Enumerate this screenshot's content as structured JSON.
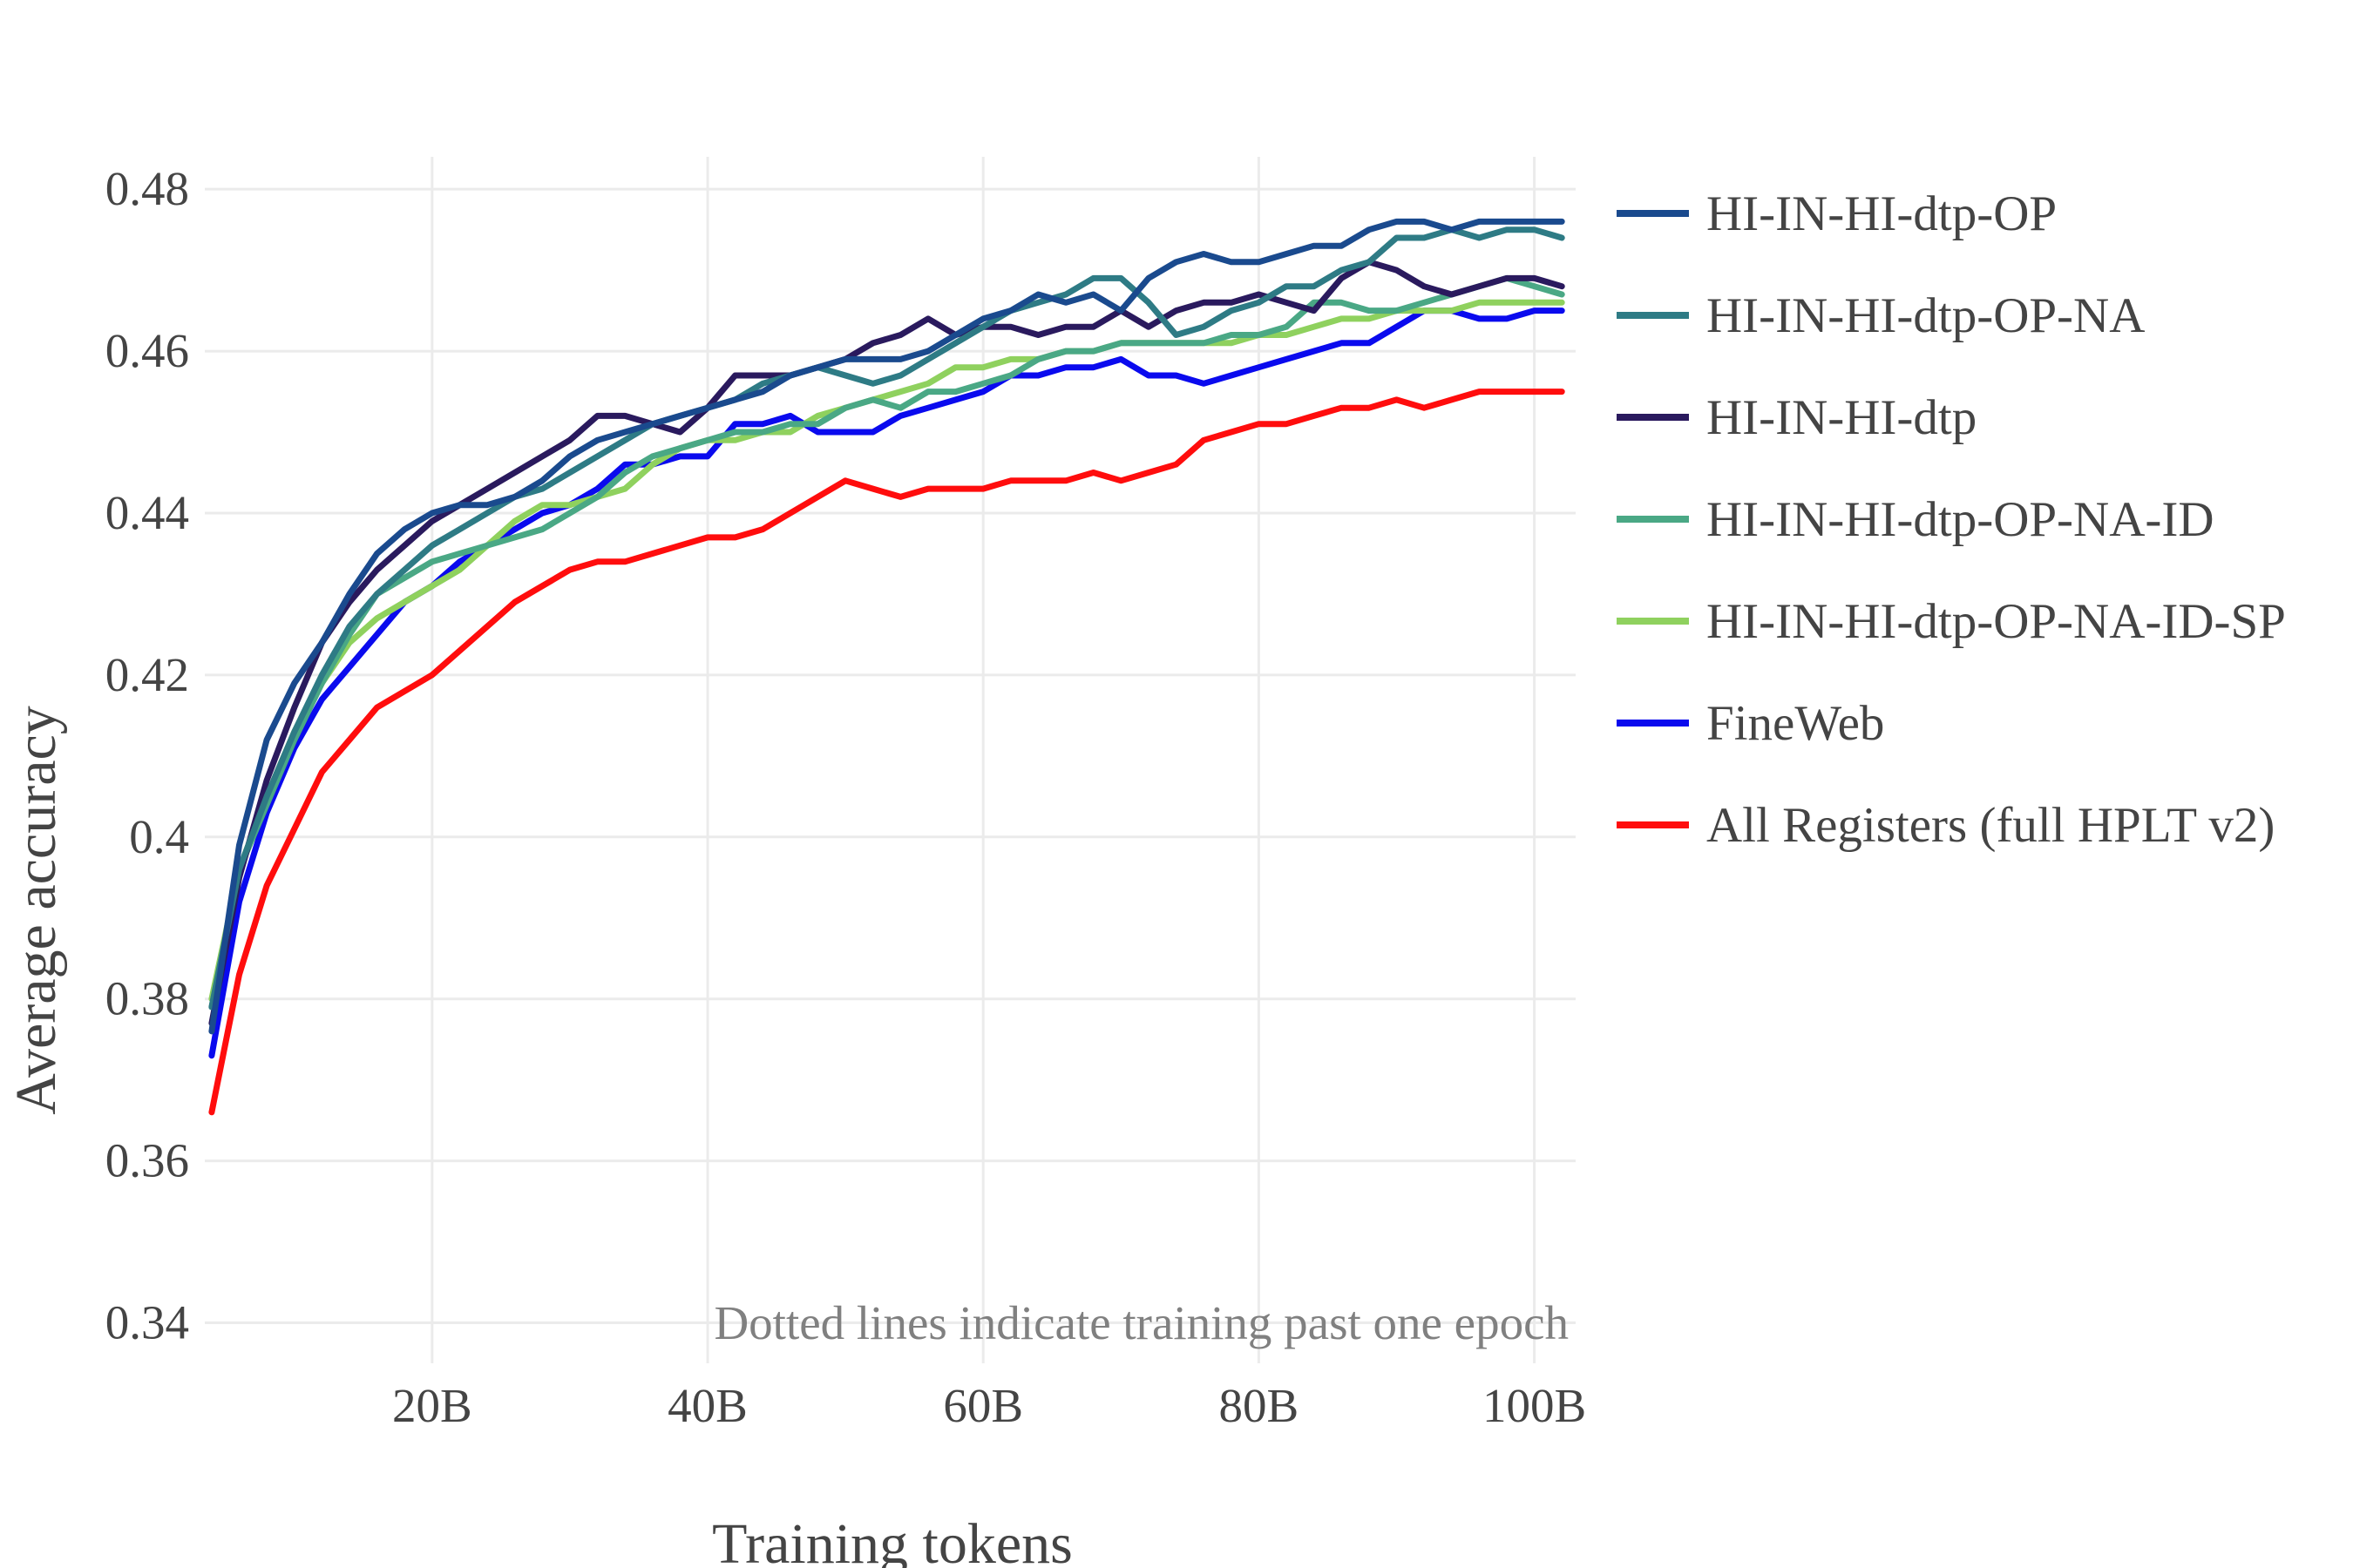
{
  "chart_data": {
    "type": "line",
    "xlabel": "Training tokens",
    "ylabel": "Average accuracy",
    "xlim": [
      3.5,
      103
    ],
    "ylim": [
      0.335,
      0.484
    ],
    "x_ticks": [
      20,
      40,
      60,
      80,
      100
    ],
    "x_tick_labels": [
      "20B",
      "40B",
      "60B",
      "80B",
      "100B"
    ],
    "y_ticks": [
      0.34,
      0.36,
      0.38,
      0.4,
      0.42,
      0.44,
      0.46,
      0.48
    ],
    "y_tick_labels": [
      "0.34",
      "0.36",
      "0.38",
      "0.4",
      "0.42",
      "0.44",
      "0.46",
      "0.48"
    ],
    "grid": true,
    "legend_position": "right",
    "annotation": "Dotted lines indicate training past one epoch",
    "x": [
      4,
      6,
      8,
      10,
      12,
      14,
      16,
      18,
      20,
      22,
      24,
      26,
      28,
      30,
      32,
      34,
      36,
      38,
      40,
      42,
      44,
      46,
      48,
      50,
      52,
      54,
      56,
      58,
      60,
      62,
      64,
      66,
      68,
      70,
      72,
      74,
      76,
      78,
      80,
      82,
      84,
      86,
      88,
      90,
      92,
      94,
      96,
      98,
      100,
      102
    ],
    "series": [
      {
        "name": "HI-IN-HI-dtp-OP",
        "color": "#1a4a8e",
        "values": [
          0.376,
          0.399,
          0.412,
          0.419,
          0.424,
          0.43,
          0.435,
          0.438,
          0.44,
          0.441,
          0.441,
          0.442,
          0.444,
          0.447,
          0.449,
          0.45,
          0.451,
          0.452,
          0.453,
          0.454,
          0.455,
          0.457,
          0.458,
          0.459,
          0.459,
          0.459,
          0.46,
          0.462,
          0.464,
          0.465,
          0.467,
          0.466,
          0.467,
          0.465,
          0.469,
          0.471,
          0.472,
          0.471,
          0.471,
          0.472,
          0.473,
          0.473,
          0.475,
          0.476,
          0.476,
          0.475,
          0.476,
          0.476,
          0.476,
          0.476
        ]
      },
      {
        "name": "HI-IN-HI-dtp-OP-NA",
        "color": "#2e7b85",
        "values": [
          0.379,
          0.396,
          0.405,
          0.413,
          0.42,
          0.426,
          0.43,
          0.433,
          0.436,
          0.438,
          0.44,
          0.442,
          0.443,
          0.445,
          0.447,
          0.449,
          0.451,
          0.452,
          0.453,
          0.454,
          0.456,
          0.457,
          0.458,
          0.457,
          0.456,
          0.457,
          0.459,
          0.461,
          0.463,
          0.465,
          0.466,
          0.467,
          0.469,
          0.469,
          0.466,
          0.462,
          0.463,
          0.465,
          0.466,
          0.468,
          0.468,
          0.47,
          0.471,
          0.474,
          0.474,
          0.475,
          0.474,
          0.475,
          0.475,
          0.474
        ]
      },
      {
        "name": "HI-IN-HI-dtp",
        "color": "#2a1a5e",
        "values": [
          0.377,
          0.395,
          0.407,
          0.416,
          0.424,
          0.429,
          0.433,
          0.436,
          0.439,
          0.441,
          0.443,
          0.445,
          0.447,
          0.449,
          0.452,
          0.452,
          0.451,
          0.45,
          0.453,
          0.457,
          0.457,
          0.457,
          0.458,
          0.459,
          0.461,
          0.462,
          0.464,
          0.462,
          0.463,
          0.463,
          0.462,
          0.463,
          0.463,
          0.465,
          0.463,
          0.465,
          0.466,
          0.466,
          0.467,
          0.466,
          0.465,
          0.469,
          0.471,
          0.47,
          0.468,
          0.467,
          0.468,
          0.469,
          0.469,
          0.468
        ]
      },
      {
        "name": "HI-IN-HI-dtp-OP-NA-ID",
        "color": "#4aa885",
        "values": [
          0.379,
          0.396,
          0.404,
          0.412,
          0.419,
          0.425,
          0.43,
          0.432,
          0.434,
          0.435,
          0.436,
          0.437,
          0.438,
          0.44,
          0.442,
          0.445,
          0.447,
          0.448,
          0.449,
          0.45,
          0.45,
          0.451,
          0.451,
          0.453,
          0.454,
          0.453,
          0.455,
          0.455,
          0.456,
          0.457,
          0.459,
          0.46,
          0.46,
          0.461,
          0.461,
          0.461,
          0.461,
          0.462,
          0.462,
          0.463,
          0.466,
          0.466,
          0.465,
          0.465,
          0.466,
          0.467,
          0.468,
          0.469,
          0.468,
          0.467
        ]
      },
      {
        "name": "HI-IN-HI-dtp-OP-NA-ID-SP",
        "color": "#8fd15e",
        "values": [
          0.38,
          0.396,
          0.405,
          0.413,
          0.419,
          0.424,
          0.427,
          0.429,
          0.431,
          0.433,
          0.436,
          0.439,
          0.441,
          0.441,
          0.442,
          0.443,
          0.446,
          0.448,
          0.449,
          0.449,
          0.45,
          0.45,
          0.452,
          0.453,
          0.454,
          0.455,
          0.456,
          0.458,
          0.458,
          0.459,
          0.459,
          0.46,
          0.46,
          0.461,
          0.461,
          0.461,
          0.461,
          0.461,
          0.462,
          0.462,
          0.463,
          0.464,
          0.464,
          0.465,
          0.465,
          0.465,
          0.466,
          0.466,
          0.466,
          0.466
        ]
      },
      {
        "name": "FineWeb",
        "color": "#0a0aee",
        "values": [
          0.373,
          0.392,
          0.403,
          0.411,
          0.417,
          0.421,
          0.425,
          0.429,
          0.431,
          0.434,
          0.436,
          0.438,
          0.44,
          0.441,
          0.443,
          0.446,
          0.446,
          0.447,
          0.447,
          0.451,
          0.451,
          0.452,
          0.45,
          0.45,
          0.45,
          0.452,
          0.453,
          0.454,
          0.455,
          0.457,
          0.457,
          0.458,
          0.458,
          0.459,
          0.457,
          0.457,
          0.456,
          0.457,
          0.458,
          0.459,
          0.46,
          0.461,
          0.461,
          0.463,
          0.465,
          0.465,
          0.464,
          0.464,
          0.465,
          0.465
        ]
      },
      {
        "name": "All Registers (full HPLT v2)",
        "color": "#ff0d0d",
        "values": [
          0.366,
          0.383,
          0.394,
          0.401,
          0.408,
          0.412,
          0.416,
          0.418,
          0.42,
          0.423,
          0.426,
          0.429,
          0.431,
          0.433,
          0.434,
          0.434,
          0.435,
          0.436,
          0.437,
          0.437,
          0.438,
          0.44,
          0.442,
          0.444,
          0.443,
          0.442,
          0.443,
          0.443,
          0.443,
          0.444,
          0.444,
          0.444,
          0.445,
          0.444,
          0.445,
          0.446,
          0.449,
          0.45,
          0.451,
          0.451,
          0.452,
          0.453,
          0.453,
          0.454,
          0.453,
          0.454,
          0.455,
          0.455,
          0.455,
          0.455
        ]
      }
    ]
  }
}
